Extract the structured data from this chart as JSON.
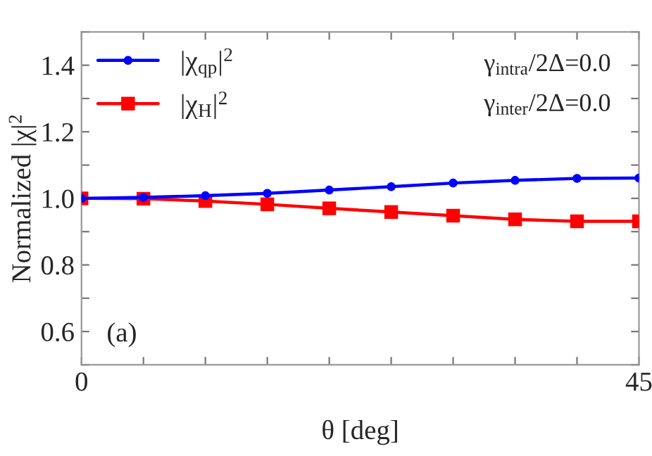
{
  "chart_data": {
    "type": "line",
    "xlabel": "θ [deg]",
    "ylabel": "Normalized |χ|$^{2}$",
    "x": [
      0,
      5,
      10,
      15,
      20,
      25,
      30,
      35,
      40,
      45
    ],
    "series": [
      {
        "name": "|χ$_{qp}$|$^{2}$",
        "color": "#0000ff",
        "marker": "circle",
        "values": [
          1.0,
          1.003,
          1.008,
          1.015,
          1.025,
          1.035,
          1.046,
          1.054,
          1.06,
          1.061
        ]
      },
      {
        "name": "|χ$_{H}$|$^{2}$",
        "color": "#ff0000",
        "marker": "square",
        "values": [
          1.0,
          0.999,
          0.992,
          0.982,
          0.97,
          0.959,
          0.948,
          0.937,
          0.931,
          0.931
        ]
      }
    ],
    "xlim": [
      0,
      45
    ],
    "xticks": [
      0,
      {
        "value": 5,
        "label": null
      },
      {
        "value": 10,
        "label": null
      },
      {
        "value": 15,
        "label": null
      },
      {
        "value": 20,
        "label": null
      },
      {
        "value": 25,
        "label": null
      },
      {
        "value": 30,
        "label": null
      },
      {
        "value": 35,
        "label": null
      },
      {
        "value": 40,
        "label": null
      },
      45
    ],
    "ylim": [
      0.5,
      1.5
    ],
    "yticks": [
      {
        "value": 0.5,
        "label": null
      },
      0.6,
      {
        "value": 0.7,
        "label": null
      },
      0.8,
      {
        "value": 0.9,
        "label": null
      },
      "1.0",
      {
        "value": 1.1,
        "label": null
      },
      1.2,
      {
        "value": 1.3,
        "label": null
      },
      1.4,
      {
        "value": 1.5,
        "label": null
      }
    ],
    "annotations": [
      "γ$_{intra}$/2Δ=0.0",
      "γ$_{inter}$/2Δ=0.0",
      "(a)"
    ],
    "legend": "top left",
    "grid": false,
    "line_style": "solid"
  }
}
